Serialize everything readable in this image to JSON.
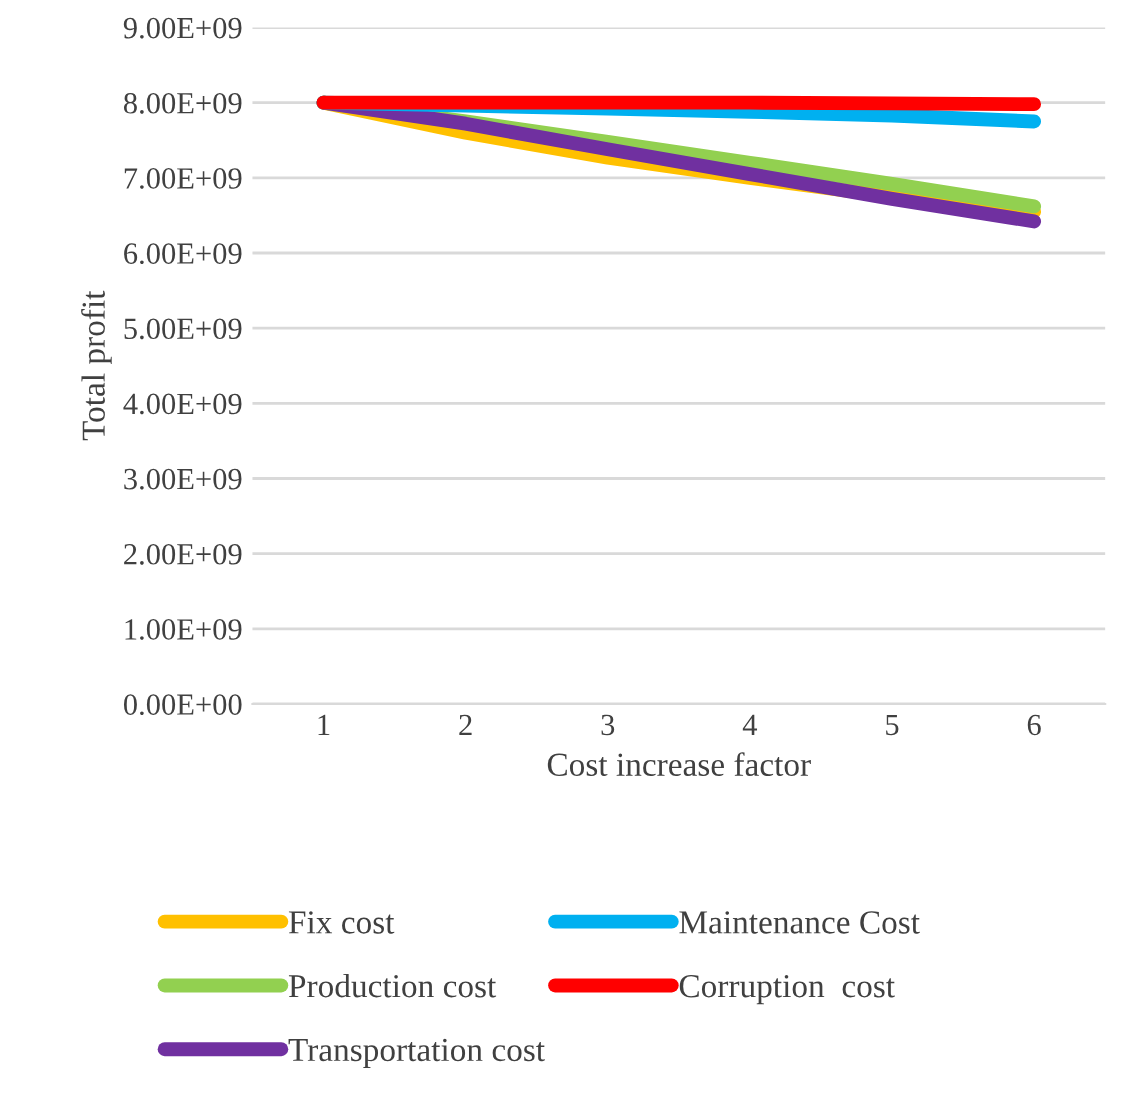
{
  "chart_data": {
    "type": "line",
    "xlabel": "Cost increase factor",
    "ylabel": "Total profit",
    "categories": [
      "1",
      "2",
      "3",
      "4",
      "5",
      "6"
    ],
    "series": [
      {
        "name": "Fix cost",
        "color": "#ffc000",
        "values": [
          8000000000.0,
          7600000000.0,
          7270000000.0,
          7000000000.0,
          6750000000.0,
          6550000000.0
        ]
      },
      {
        "name": "Production cost",
        "color": "#92d050",
        "values": [
          8000000000.0,
          7750000000.0,
          7480000000.0,
          7200000000.0,
          6920000000.0,
          6620000000.0
        ]
      },
      {
        "name": "Transportation cost",
        "color": "#7030a0",
        "values": [
          8000000000.0,
          7720000000.0,
          7380000000.0,
          7050000000.0,
          6720000000.0,
          6420000000.0
        ]
      },
      {
        "name": "Maintenance Cost",
        "color": "#00b0f0",
        "values": [
          8000000000.0,
          7960000000.0,
          7920000000.0,
          7880000000.0,
          7830000000.0,
          7750000000.0
        ]
      },
      {
        "name": "Corruption  cost",
        "color": "#ff0000",
        "values": [
          8000000000.0,
          8000000000.0,
          8000000000.0,
          8000000000.0,
          7990000000.0,
          7980000000.0
        ]
      }
    ],
    "ylim": [
      0,
      9000000000.0
    ],
    "yticks": [
      {
        "value": 0,
        "label": "0.00E+00"
      },
      {
        "value": 1000000000.0,
        "label": "1.00E+09"
      },
      {
        "value": 2000000000.0,
        "label": "2.00E+09"
      },
      {
        "value": 3000000000.0,
        "label": "3.00E+09"
      },
      {
        "value": 4000000000.0,
        "label": "4.00E+09"
      },
      {
        "value": 5000000000.0,
        "label": "5.00E+09"
      },
      {
        "value": 6000000000.0,
        "label": "6.00E+09"
      },
      {
        "value": 7000000000.0,
        "label": "7.00E+09"
      },
      {
        "value": 8000000000.0,
        "label": "8.00E+09"
      },
      {
        "value": 9000000000.0,
        "label": "9.00E+09"
      }
    ],
    "grid": "y",
    "legend": "bottom",
    "marker": "none",
    "line_style": "solid"
  }
}
